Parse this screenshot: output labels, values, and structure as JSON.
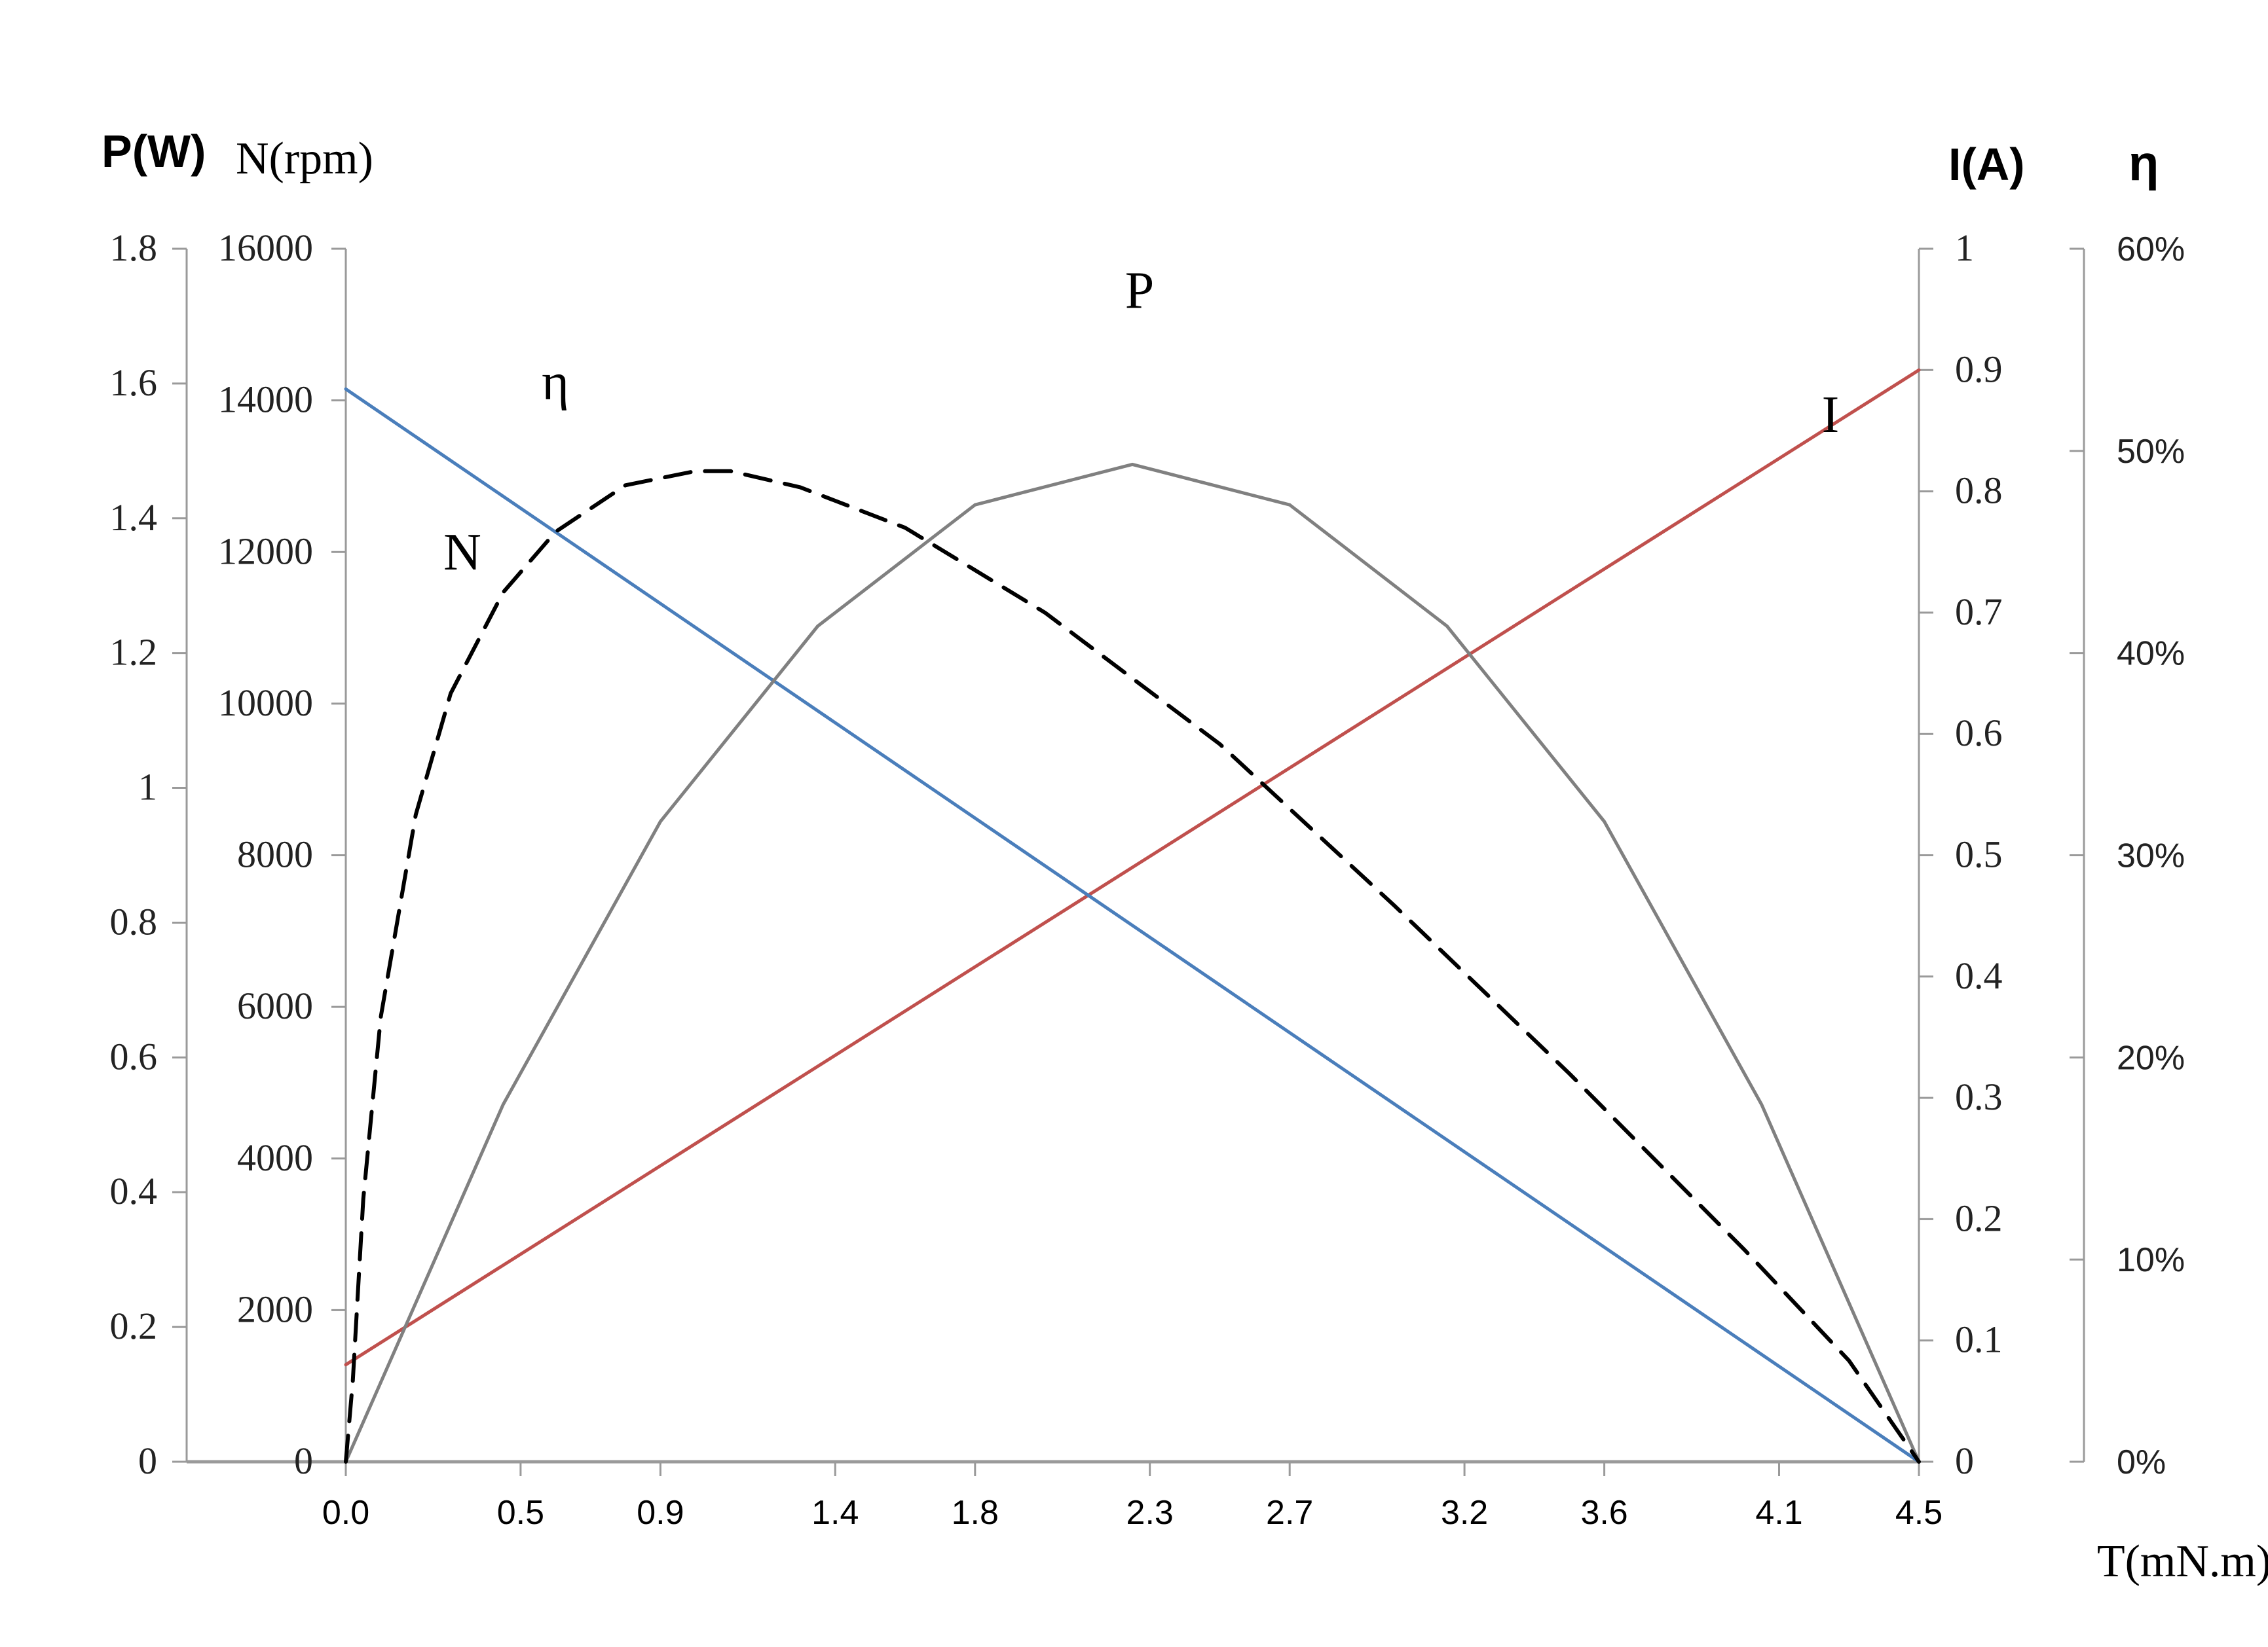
{
  "chart_data": {
    "type": "line",
    "x": [
      0.0,
      0.5,
      0.9,
      1.4,
      1.8,
      2.3,
      2.7,
      3.2,
      3.6,
      4.1,
      4.5
    ],
    "xlabel": "T(mN.m)",
    "x_tick_labels": [
      "0.0",
      "0.5",
      "0.9",
      "1.4",
      "1.8",
      "2.3",
      "2.7",
      "3.2",
      "3.6",
      "4.1",
      "4.5"
    ],
    "xlim": [
      0,
      4.5
    ],
    "grid": false,
    "axes": {
      "P": {
        "label": "P(W)",
        "ylim": [
          0,
          1.8
        ],
        "ticks": [
          "0",
          "0.2",
          "0.4",
          "0.6",
          "0.8",
          "1",
          "1.2",
          "1.4",
          "1.6",
          "1.8"
        ]
      },
      "N": {
        "label": "N(rpm)",
        "ylim": [
          0,
          16000
        ],
        "ticks": [
          "0",
          "2000",
          "4000",
          "6000",
          "8000",
          "10000",
          "12000",
          "14000",
          "16000"
        ]
      },
      "I": {
        "label": "I(A)",
        "ylim": [
          0,
          1
        ],
        "ticks": [
          "0",
          "0.1",
          "0.2",
          "0.3",
          "0.4",
          "0.5",
          "0.6",
          "0.7",
          "0.8",
          "0.9",
          "1"
        ]
      },
      "eta": {
        "label": "η",
        "ylim": [
          0,
          60
        ],
        "ticks": [
          "0%",
          "10%",
          "20%",
          "30%",
          "40%",
          "50%",
          "60%"
        ]
      }
    },
    "series": [
      {
        "name": "N",
        "axis": "N",
        "color": "#4a7ebb",
        "style": "solid",
        "x": [
          0.0,
          4.5
        ],
        "values": [
          14150,
          0
        ]
      },
      {
        "name": "I",
        "axis": "I",
        "color": "#c0504d",
        "style": "solid",
        "x": [
          0.0,
          4.5
        ],
        "values": [
          0.08,
          0.9
        ]
      },
      {
        "name": "P",
        "axis": "P",
        "color": "#808080",
        "style": "solid",
        "x": [
          0.0,
          0.45,
          0.9,
          1.35,
          1.8,
          2.25,
          2.7,
          3.15,
          3.6,
          4.05,
          4.5
        ],
        "values": [
          0,
          0.53,
          0.95,
          1.24,
          1.42,
          1.48,
          1.42,
          1.24,
          0.95,
          0.53,
          0
        ]
      },
      {
        "name": "η",
        "axis": "eta",
        "color": "#000000",
        "style": "dashed",
        "x": [
          0.0,
          0.02,
          0.05,
          0.1,
          0.2,
          0.3,
          0.45,
          0.6,
          0.8,
          1.0,
          1.1,
          1.3,
          1.6,
          2.0,
          2.5,
          3.0,
          3.5,
          4.0,
          4.3,
          4.5
        ],
        "values": [
          0,
          4,
          13,
          22,
          32,
          38,
          43,
          46,
          48.3,
          49,
          49,
          48.2,
          46.2,
          42,
          35.5,
          27.5,
          19.2,
          10.5,
          5,
          0
        ]
      }
    ]
  }
}
